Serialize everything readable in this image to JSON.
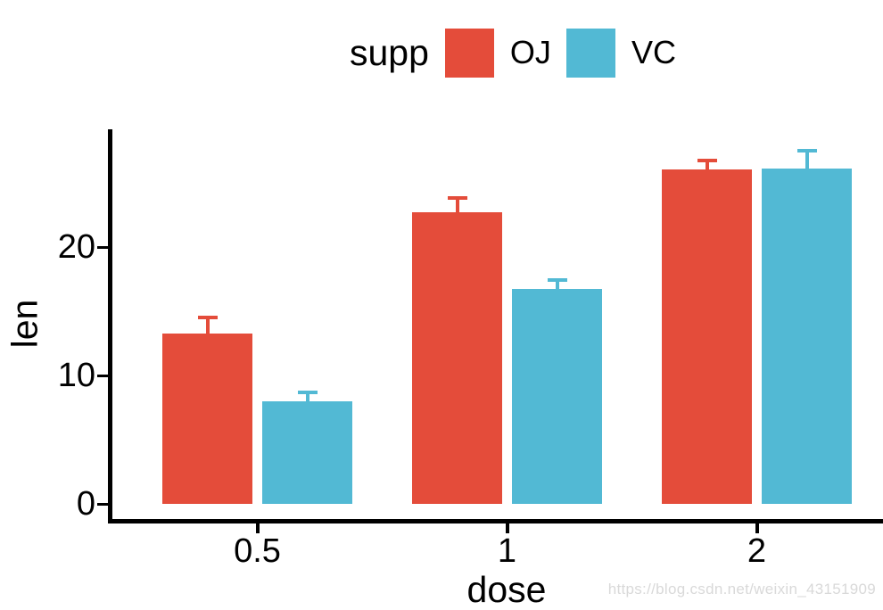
{
  "legend": {
    "title": "supp",
    "items": [
      {
        "label": "OJ",
        "color": "#E44C3A"
      },
      {
        "label": "VC",
        "color": "#52B9D4"
      }
    ]
  },
  "axes": {
    "y_label": "len",
    "x_label": "dose",
    "y_ticks": [
      0,
      10,
      20
    ],
    "x_ticks": [
      "0.5",
      "1",
      "2"
    ]
  },
  "watermark": "https://blog.csdn.net/weixin_43151909",
  "colors": {
    "axis": "#000000",
    "oj": "#E44C3A",
    "vc": "#52B9D4",
    "watermark_text": "#d9d9d9"
  },
  "chart_data": {
    "type": "bar",
    "title": "",
    "categories": [
      "0.5",
      "1",
      "2"
    ],
    "series": [
      {
        "name": "OJ",
        "color": "#E44C3A",
        "values": [
          13.23,
          22.7,
          26.06
        ],
        "se": [
          1.41,
          1.24,
          0.84
        ]
      },
      {
        "name": "VC",
        "color": "#52B9D4",
        "values": [
          7.98,
          16.77,
          26.14
        ],
        "se": [
          0.87,
          0.8,
          1.52
        ]
      }
    ],
    "xlabel": "dose",
    "ylabel": "len",
    "ylim": [
      0,
      29
    ],
    "y_tick_values": [
      0,
      10,
      20
    ],
    "error_bars": "mean + standard error (upper whisker with cap)",
    "legend_position": "top-center",
    "grid": false,
    "bar_grouping": "dodged"
  }
}
